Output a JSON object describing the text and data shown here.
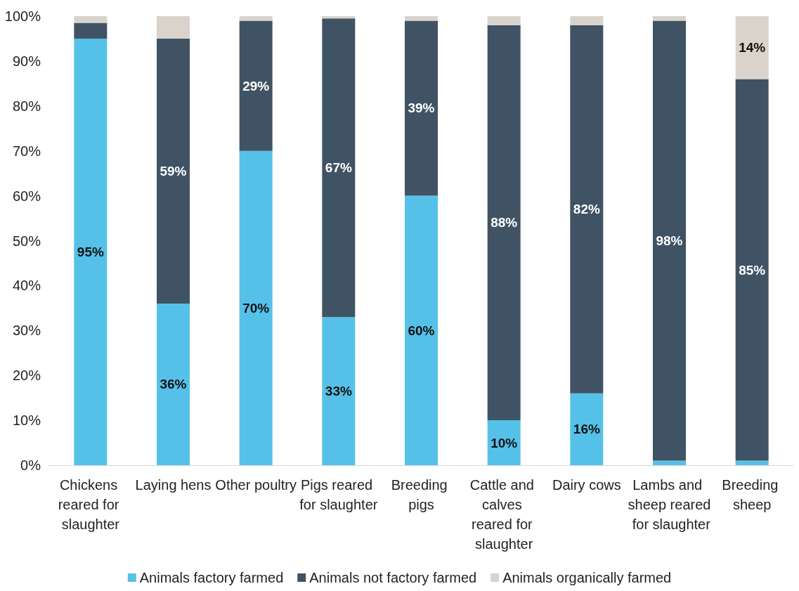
{
  "chart_data": {
    "type": "bar",
    "stacked": true,
    "categories": [
      "Chickens reared for slaughter",
      "Laying hens",
      "Other poultry",
      "Pigs reared for slaughter",
      "Breeding pigs",
      "Cattle and calves reared for slaughter",
      "Dairy cows",
      "Lambs and sheep reared for slaughter",
      "Breeding sheep"
    ],
    "series": [
      {
        "name": "Animals factory farmed",
        "color": "#56c1e8",
        "values": [
          95,
          36,
          70,
          33,
          60,
          10,
          16,
          1,
          1
        ],
        "value_labels": [
          "95%",
          "36%",
          "70%",
          "33%",
          "60%",
          "10%",
          "16%",
          null,
          null
        ]
      },
      {
        "name": "Animals not factory farmed",
        "color": "#3f5364",
        "values": [
          3.5,
          59,
          29,
          66.5,
          39,
          88,
          82,
          98,
          85
        ],
        "value_labels": [
          null,
          "59%",
          "29%",
          "67%",
          "39%",
          "88%",
          "82%",
          "98%",
          "85%"
        ]
      },
      {
        "name": "Animals organically farmed",
        "color": "#d9d3cc",
        "values": [
          1.5,
          5,
          1,
          0.5,
          1,
          2,
          2,
          1,
          14
        ],
        "value_labels": [
          null,
          null,
          null,
          null,
          null,
          null,
          null,
          null,
          "14%"
        ]
      }
    ],
    "ylim": [
      0,
      100
    ],
    "yticks": [
      {
        "value": 0,
        "label": "0%"
      },
      {
        "value": 10,
        "label": "10%"
      },
      {
        "value": 20,
        "label": "20%"
      },
      {
        "value": 30,
        "label": "30%"
      },
      {
        "value": 40,
        "label": "40%"
      },
      {
        "value": 50,
        "label": "50%"
      },
      {
        "value": 60,
        "label": "60%"
      },
      {
        "value": 70,
        "label": "70%"
      },
      {
        "value": 80,
        "label": "80%"
      },
      {
        "value": 90,
        "label": "90%"
      },
      {
        "value": 100,
        "label": "100%"
      }
    ],
    "grid": false,
    "legend": "bottom"
  }
}
